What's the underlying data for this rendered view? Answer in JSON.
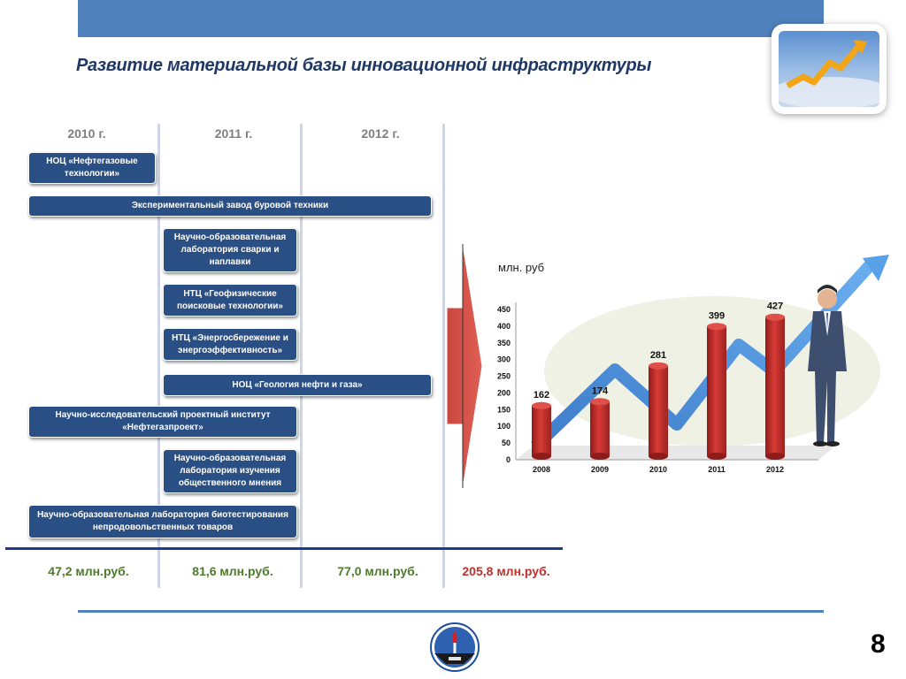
{
  "slide": {
    "title": "Развитие материальной базы инновационной инфраструктуры",
    "page_number": "8"
  },
  "timeline": {
    "years": [
      "2010 г.",
      "2011 г.",
      "2012 г."
    ],
    "items": [
      "НОЦ «Нефтегазовые технологии»",
      "Экспериментальный завод буровой техники",
      "Научно-образовательная лаборатория сварки и наплавки",
      "НТЦ «Геофизические поисковые технологии»",
      "НТЦ «Энергосбережение и энергоэффективность»",
      "НОЦ «Геология нефти и газа»",
      "Научно-исследовательский проектный институт «Нефтегазпроект»",
      "Научно-образовательная лаборатория изучения общественного мнения",
      "Научно-образовательная лаборатория биотестирования непродовольственных товаров"
    ],
    "totals": [
      "47,2 млн.руб.",
      "81,6 млн.руб.",
      "77,0 млн.руб.",
      "205,8 млн.руб."
    ]
  },
  "chart_data": {
    "type": "bar",
    "unit_label": "млн. руб",
    "categories": [
      "2008",
      "2009",
      "2010",
      "2011",
      "2012"
    ],
    "values": [
      162,
      174,
      281,
      399,
      427
    ],
    "ylim": [
      0,
      450
    ],
    "yticks": [
      0,
      50,
      100,
      150,
      200,
      250,
      300,
      350,
      400,
      450
    ],
    "bar_color": "#c8302e"
  },
  "colors": {
    "accent": "#4f81bd",
    "box": "#2a4f84",
    "title": "#1f3864",
    "total_green": "#4e7a2c",
    "total_red": "#c0302a"
  }
}
